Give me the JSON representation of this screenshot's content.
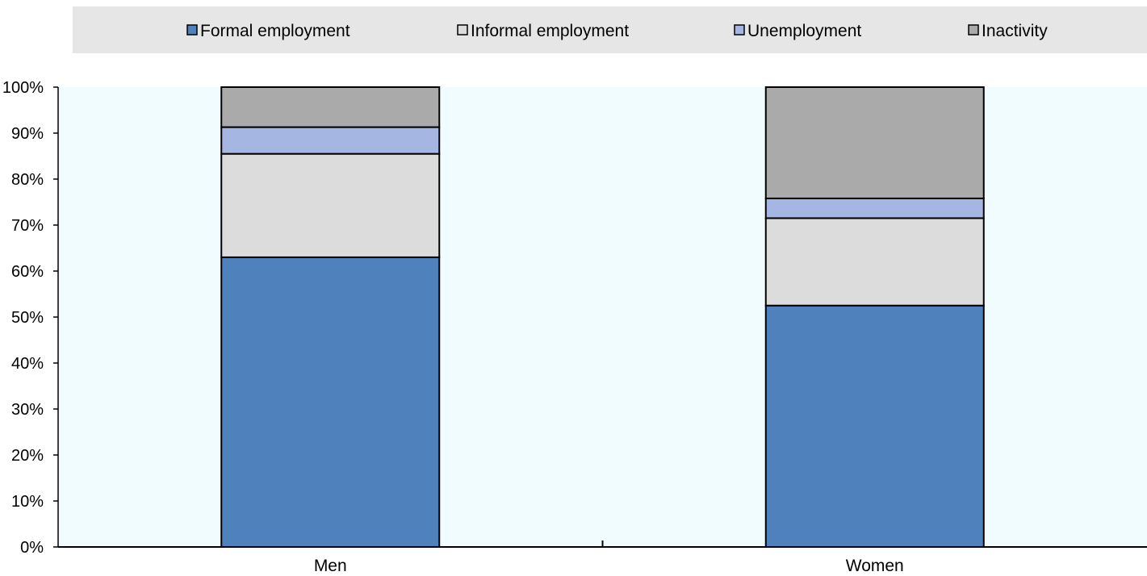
{
  "chart_data": {
    "type": "bar",
    "stacked": true,
    "categories": [
      "Men",
      "Women"
    ],
    "series": [
      {
        "name": "Formal employment",
        "color": "#4f81bd",
        "values": [
          63.0,
          52.5
        ]
      },
      {
        "name": "Informal employment",
        "color": "#dcdcdc",
        "values": [
          22.5,
          19.0
        ]
      },
      {
        "name": "Unemployment",
        "color": "#a6b6e2",
        "values": [
          5.8,
          4.3
        ]
      },
      {
        "name": "Inactivity",
        "color": "#aaaaaa",
        "values": [
          8.7,
          24.2
        ]
      }
    ],
    "title": "",
    "xlabel": "",
    "ylabel": "",
    "ylim": [
      0,
      100
    ],
    "yticks": [
      "0%",
      "10%",
      "20%",
      "30%",
      "40%",
      "50%",
      "60%",
      "70%",
      "80%",
      "90%",
      "100%"
    ],
    "grid": false,
    "legend_position": "top",
    "plot_background": "#f0fcff"
  }
}
